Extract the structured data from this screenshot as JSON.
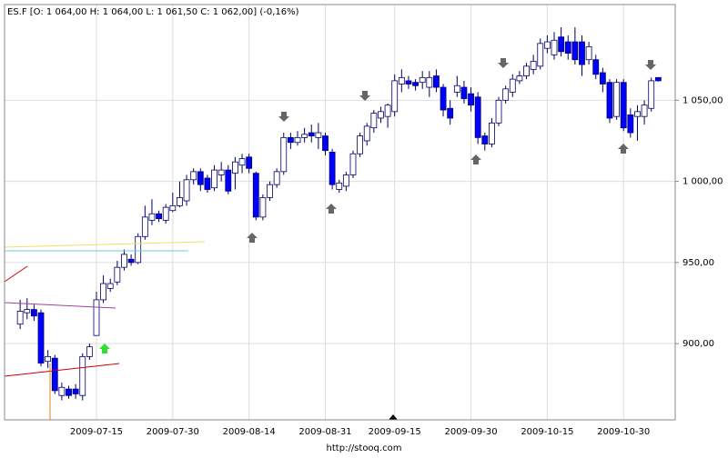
{
  "chart_data": {
    "type": "candlestick",
    "title": "ES.F [O: 1 064,00  H: 1 064,00  L: 1 061,50  C: 1 062,00] (-0,16%)",
    "source": "http://stooq.com",
    "categories": [
      null,
      null,
      null,
      null,
      null,
      null,
      null,
      null,
      null,
      null,
      null,
      "2009-07-15",
      null,
      null,
      null,
      null,
      null,
      null,
      null,
      null,
      null,
      null,
      "2009-07-30",
      null,
      null,
      null,
      null,
      null,
      null,
      null,
      null,
      null,
      null,
      "2009-08-14",
      null,
      null,
      null,
      null,
      null,
      null,
      null,
      null,
      null,
      null,
      "2009-08-31",
      null,
      null,
      null,
      null,
      null,
      null,
      null,
      null,
      null,
      "2009-09-15",
      null,
      null,
      null,
      null,
      null,
      null,
      null,
      null,
      null,
      null,
      "2009-09-30",
      null,
      null,
      null,
      null,
      null,
      null,
      null,
      null,
      null,
      null,
      "2009-10-15",
      null,
      null,
      null,
      null,
      null,
      null,
      null,
      null,
      null,
      null,
      "2009-10-30",
      null,
      null,
      null,
      null,
      null
    ],
    "open": [
      912,
      919,
      921,
      919,
      889,
      891,
      868,
      872,
      872,
      868,
      892,
      905,
      927,
      934,
      938,
      947,
      952,
      950,
      966,
      976,
      980,
      976,
      982,
      985,
      988,
      1001,
      1006,
      1002,
      996,
      1004,
      1007,
      1005,
      1010,
      1015,
      1005,
      978,
      990,
      998,
      1006,
      1027,
      1024,
      1027,
      1030,
      1027,
      1028,
      1018,
      995,
      997,
      1004,
      1017,
      1025,
      1033,
      1039,
      1040,
      1043,
      1060,
      1062,
      1061,
      1061,
      1058,
      1065,
      1058,
      1045,
      1055,
      1058,
      1054,
      1052,
      1028,
      1023,
      1036,
      1050,
      1055,
      1062,
      1065,
      1069,
      1071,
      1082,
      1078,
      1089,
      1086,
      1086,
      1086,
      1075,
      1075,
      1067,
      1061,
      1040,
      1061,
      1041,
      1040,
      1040,
      1045,
      1064
    ],
    "high": [
      927,
      928,
      924,
      921,
      896,
      893,
      876,
      874,
      875,
      894,
      900,
      932,
      942,
      940,
      951,
      958,
      955,
      968,
      985,
      989,
      982,
      986,
      993,
      1000,
      1004,
      1008,
      1008,
      1004,
      1010,
      1012,
      1010,
      1015,
      1017,
      1017,
      1006,
      992,
      1000,
      1008,
      1030,
      1030,
      1031,
      1033,
      1035,
      1036,
      1030,
      1020,
      1001,
      1006,
      1019,
      1030,
      1036,
      1044,
      1046,
      1048,
      1066,
      1069,
      1065,
      1063,
      1068,
      1068,
      1069,
      1060,
      1050,
      1065,
      1062,
      1058,
      1055,
      1030,
      1039,
      1052,
      1059,
      1066,
      1068,
      1073,
      1078,
      1088,
      1090,
      1092,
      1095,
      1090,
      1095,
      1090,
      1086,
      1078,
      1070,
      1063,
      1063,
      1063,
      1045,
      1047,
      1050,
      1064,
      1064
    ],
    "low": [
      909,
      915,
      914,
      886,
      885,
      869,
      865,
      866,
      866,
      865,
      890,
      905,
      925,
      932,
      936,
      945,
      948,
      949,
      964,
      973,
      975,
      974,
      981,
      984,
      985,
      998,
      994,
      993,
      994,
      1000,
      992,
      995,
      1005,
      1005,
      976,
      976,
      988,
      996,
      1004,
      1020,
      1022,
      1024,
      1024,
      1020,
      1016,
      995,
      993,
      994,
      1002,
      1015,
      1022,
      1030,
      1036,
      1033,
      1040,
      1055,
      1057,
      1056,
      1057,
      1052,
      1055,
      1040,
      1035,
      1052,
      1048,
      1043,
      1023,
      1019,
      1021,
      1034,
      1048,
      1052,
      1060,
      1063,
      1066,
      1069,
      1079,
      1075,
      1077,
      1075,
      1072,
      1065,
      1072,
      1063,
      1055,
      1036,
      1038,
      1031,
      1027,
      1025,
      1035,
      1043,
      1061.5
    ],
    "close": [
      920,
      921,
      917,
      888,
      892,
      871,
      873,
      868,
      869,
      892,
      898,
      927,
      937,
      937,
      947,
      955,
      950,
      966,
      978,
      980,
      977,
      984,
      985,
      990,
      1001,
      1006,
      998,
      995,
      1007,
      1007,
      994,
      1012,
      1014,
      1008,
      978,
      990,
      998,
      1006,
      1027,
      1024,
      1027,
      1029,
      1028,
      1030,
      1019,
      998,
      999,
      1004,
      1017,
      1028,
      1034,
      1042,
      1043,
      1047,
      1062,
      1064,
      1060,
      1059,
      1064,
      1064,
      1058,
      1044,
      1039,
      1059,
      1051,
      1047,
      1027,
      1023,
      1036,
      1050,
      1057,
      1063,
      1065,
      1071,
      1074,
      1085,
      1086,
      1087,
      1080,
      1079,
      1075,
      1072,
      1083,
      1066,
      1060,
      1039,
      1061,
      1033,
      1030,
      1043,
      1047,
      1062,
      1062
    ],
    "up_color": "#ffffff",
    "down_color": "#0000ff",
    "edge_color": "#000066",
    "ylim": [
      853,
      1109
    ],
    "yticks": [
      {
        "value": 900,
        "label": "900,00"
      },
      {
        "value": 950,
        "label": "950,00"
      },
      {
        "value": 1000,
        "label": "1 000,00"
      },
      {
        "value": 1050,
        "label": "1 050,00"
      }
    ],
    "grid": true
  }
}
